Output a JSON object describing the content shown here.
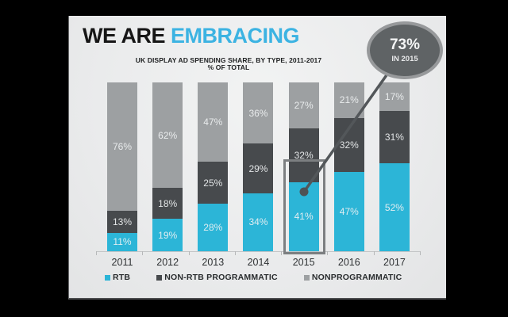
{
  "title": {
    "prefix": "WE ARE",
    "highlight": "EMBRACING"
  },
  "subtitle": {
    "line1": "UK DISPLAY AD SPENDING SHARE, BY TYPE, 2011-2017",
    "line2": "% OF TOTAL"
  },
  "callout": {
    "value": "73%",
    "caption": "IN 2015"
  },
  "colors": {
    "page_bg": "#000000",
    "slide_bg": "#ecedee",
    "title_black": "#161616",
    "title_blue": "#3cb3e2",
    "rtb_blue": "#2cb5d7",
    "non_rtb_dark": "#474a4d",
    "nonprogrammatic_gray": "#9da0a2",
    "callout_fill": "#5f6365",
    "callout_border": "#97999b",
    "connector": "#53575a",
    "highlight_box_border": "#7c7f81"
  },
  "chart_data": {
    "type": "bar",
    "stacked": true,
    "title": "UK DISPLAY AD SPENDING SHARE, BY TYPE, 2011-2017",
    "subtitle": "% OF TOTAL",
    "unit": "%",
    "ylim": [
      0,
      100
    ],
    "grid": false,
    "legend_position": "bottom",
    "categories": [
      "2011",
      "2012",
      "2013",
      "2014",
      "2015",
      "2016",
      "2017"
    ],
    "series": [
      {
        "name": "RTB",
        "color": "#2cb5d7",
        "values": [
          11,
          19,
          28,
          34,
          41,
          47,
          52
        ]
      },
      {
        "name": "NON-RTB PROGRAMMATIC",
        "color": "#474a4d",
        "values": [
          13,
          18,
          25,
          29,
          32,
          32,
          31
        ]
      },
      {
        "name": "NONPROGRAMMATIC",
        "color": "#9da0a2",
        "values": [
          76,
          62,
          47,
          36,
          27,
          21,
          17
        ]
      }
    ],
    "highlighted_category": "2015",
    "annotation": {
      "text": "73%",
      "caption": "IN 2015",
      "target_category": "2015"
    }
  }
}
